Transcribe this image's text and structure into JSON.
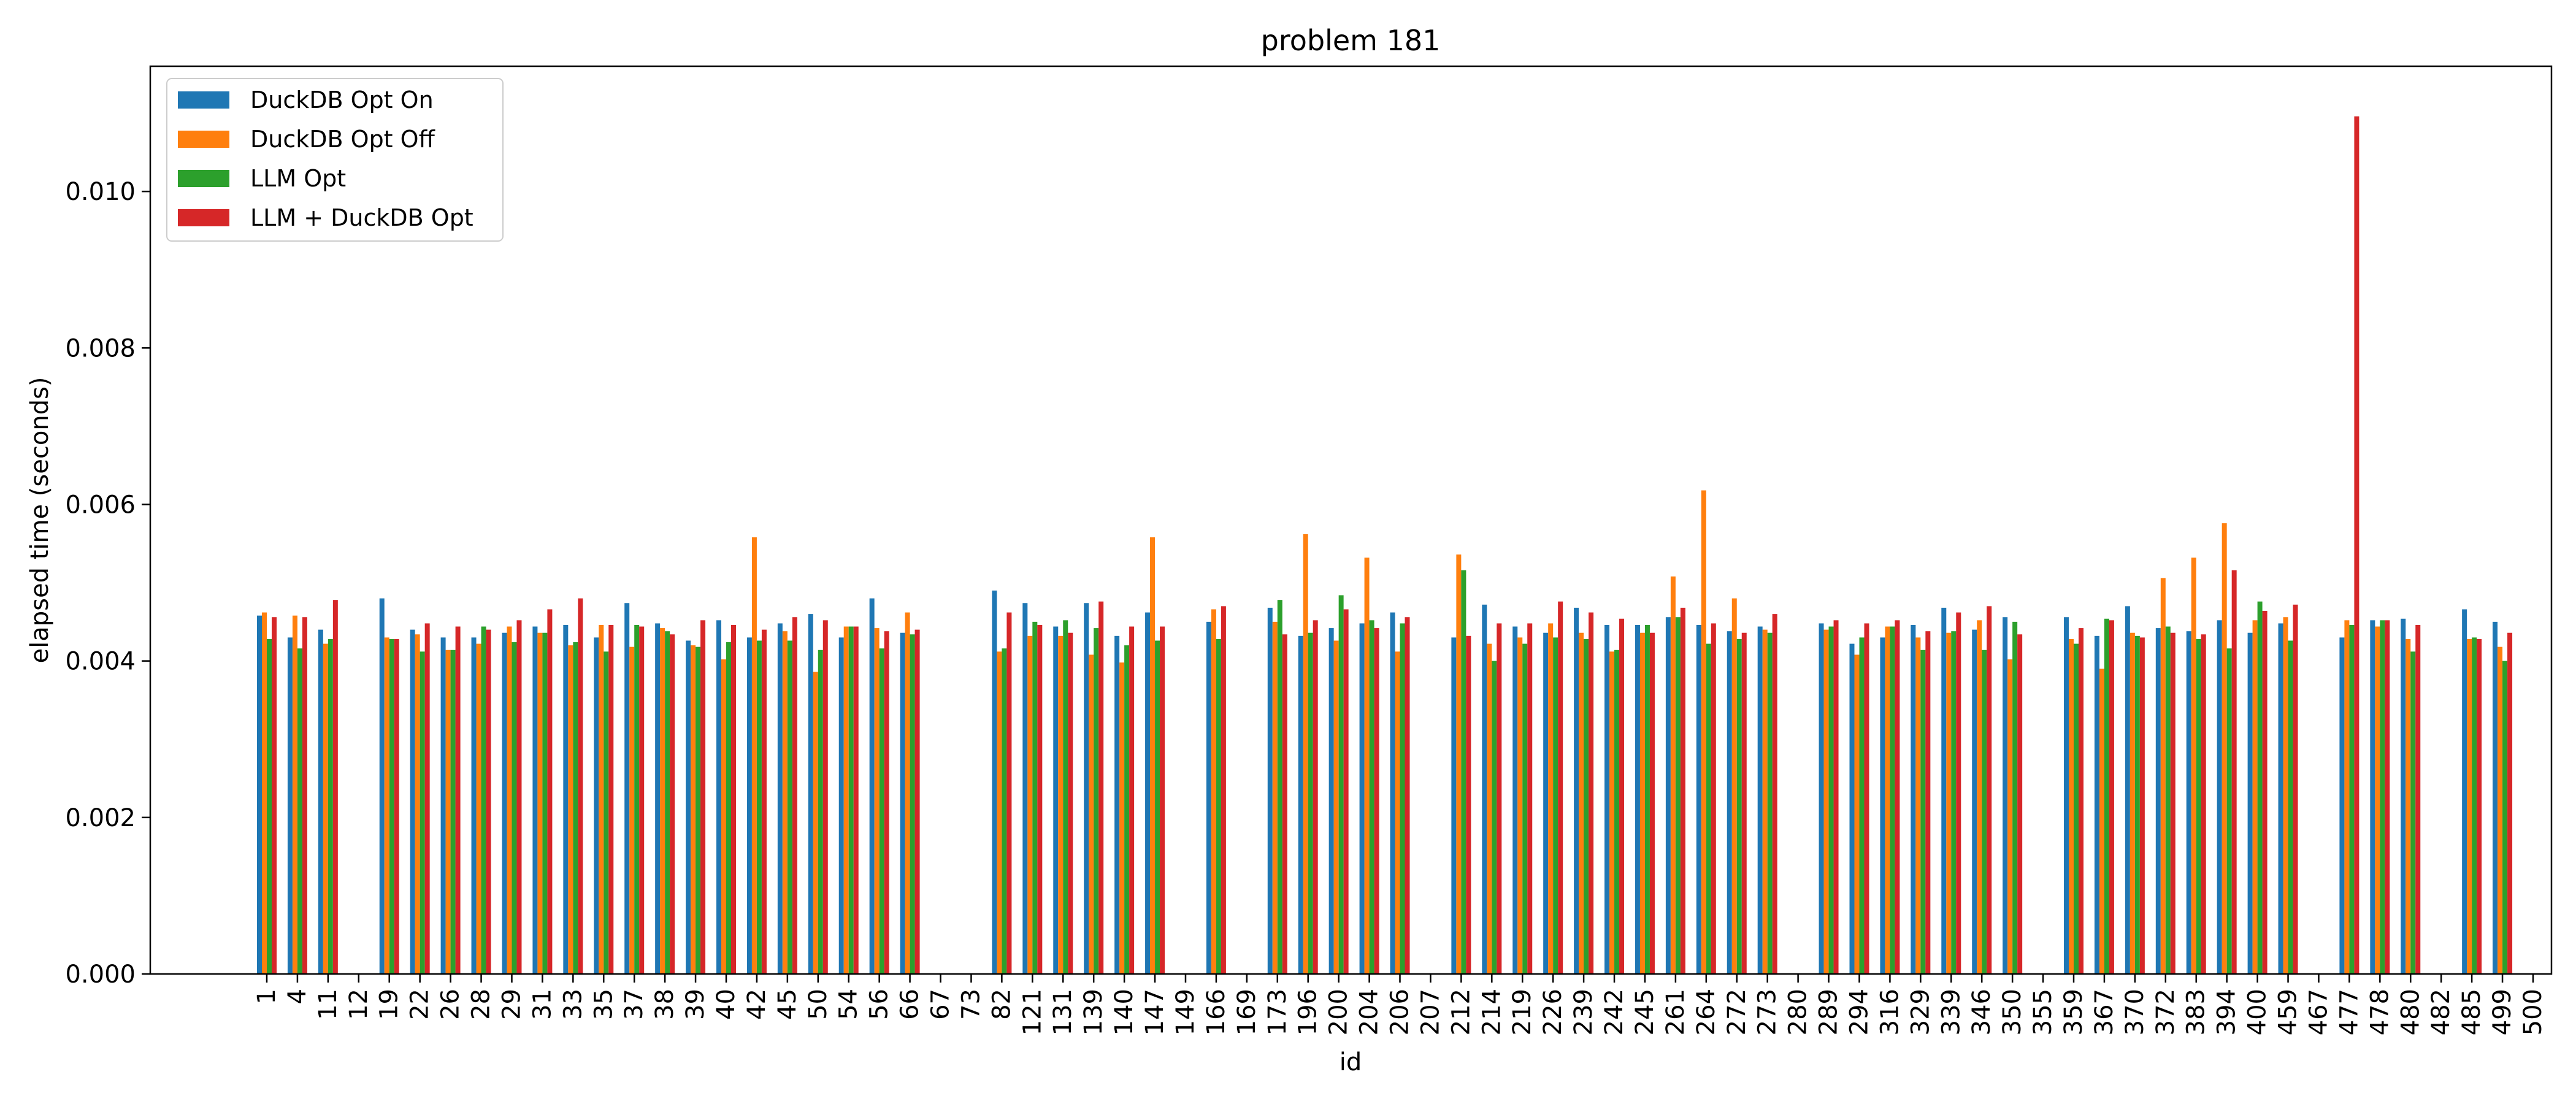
{
  "chart_data": {
    "type": "bar",
    "title": "problem 181",
    "xlabel": "id",
    "ylabel": "elapsed time (seconds)",
    "ylim": [
      0,
      0.0116
    ],
    "yticks": [
      "0.000",
      "0.002",
      "0.004",
      "0.006",
      "0.008",
      "0.010"
    ],
    "grid": false,
    "legend_position": "top-left",
    "categories": [
      "1",
      "4",
      "11",
      "12",
      "19",
      "22",
      "26",
      "28",
      "29",
      "31",
      "33",
      "35",
      "37",
      "38",
      "39",
      "40",
      "42",
      "45",
      "50",
      "54",
      "56",
      "66",
      "67",
      "73",
      "82",
      "121",
      "131",
      "139",
      "140",
      "147",
      "149",
      "166",
      "169",
      "173",
      "196",
      "200",
      "204",
      "206",
      "207",
      "212",
      "214",
      "219",
      "226",
      "239",
      "242",
      "245",
      "261",
      "264",
      "272",
      "273",
      "280",
      "289",
      "294",
      "316",
      "329",
      "339",
      "346",
      "350",
      "355",
      "359",
      "367",
      "370",
      "372",
      "383",
      "394",
      "400",
      "459",
      "467",
      "477",
      "478",
      "480",
      "482",
      "485",
      "499",
      "500"
    ],
    "series": [
      {
        "name": "DuckDB Opt On",
        "color": "#1f77b4",
        "values": [
          0.00458,
          0.0043,
          0.0044,
          0,
          0.0048,
          0.0044,
          0.0043,
          0.0043,
          0.00436,
          0.00444,
          0.00446,
          0.0043,
          0.00474,
          0.00448,
          0.00426,
          0.00452,
          0.0043,
          0.00448,
          0.0046,
          0.0043,
          0.0048,
          0.00436,
          0,
          0,
          0.0049,
          0.00474,
          0.00444,
          0.00474,
          0.00432,
          0.00462,
          0,
          0.0045,
          0,
          0.00468,
          0.00432,
          0.00442,
          0.00448,
          0.00462,
          0,
          0.0043,
          0.00472,
          0.00444,
          0.00436,
          0.00468,
          0.00446,
          0.00446,
          0.00456,
          0.00446,
          0.00438,
          0.00444,
          0,
          0.00448,
          0.00422,
          0.0043,
          0.00446,
          0.00468,
          0.0044,
          0.00456,
          0,
          0.00456,
          0.00432,
          0.0047,
          0.00442,
          0.00438,
          0.00452,
          0.00436,
          0.00448,
          0,
          0.0043,
          0.00452,
          0.00454,
          0,
          0.00466,
          0.0045,
          0
        ]
      },
      {
        "name": "DuckDB Opt Off",
        "color": "#ff7f0e",
        "values": [
          0.00462,
          0.00458,
          0.00422,
          0,
          0.0043,
          0.00434,
          0.00414,
          0.00422,
          0.00444,
          0.00436,
          0.0042,
          0.00446,
          0.00418,
          0.00442,
          0.0042,
          0.00402,
          0.00558,
          0.00438,
          0.00386,
          0.00444,
          0.00442,
          0.00462,
          0,
          0,
          0.00412,
          0.00432,
          0.00432,
          0.00408,
          0.00398,
          0.00558,
          0,
          0.00466,
          0,
          0.0045,
          0.00562,
          0.00426,
          0.00532,
          0.00412,
          0,
          0.00536,
          0.00422,
          0.0043,
          0.00448,
          0.00436,
          0.00412,
          0.00436,
          0.00508,
          0.00618,
          0.0048,
          0.0044,
          0,
          0.0044,
          0.00408,
          0.00444,
          0.0043,
          0.00436,
          0.00452,
          0.00402,
          0,
          0.00428,
          0.0039,
          0.00436,
          0.00506,
          0.00532,
          0.00576,
          0.00452,
          0.00456,
          0,
          0.00452,
          0.00444,
          0.00428,
          0,
          0.00428,
          0.00418,
          0
        ]
      },
      {
        "name": "LLM Opt",
        "color": "#2ca02c",
        "values": [
          0.00428,
          0.00416,
          0.00428,
          0,
          0.00428,
          0.00412,
          0.00414,
          0.00444,
          0.00424,
          0.00436,
          0.00424,
          0.00412,
          0.00446,
          0.00438,
          0.00418,
          0.00424,
          0.00426,
          0.00426,
          0.00414,
          0.00444,
          0.00416,
          0.00434,
          0,
          0,
          0.00416,
          0.0045,
          0.00452,
          0.00442,
          0.0042,
          0.00426,
          0,
          0.00428,
          0,
          0.00478,
          0.00436,
          0.00484,
          0.00452,
          0.00448,
          0,
          0.00516,
          0.004,
          0.00422,
          0.0043,
          0.00428,
          0.00414,
          0.00446,
          0.00456,
          0.00422,
          0.00428,
          0.00436,
          0,
          0.00444,
          0.0043,
          0.00444,
          0.00414,
          0.00438,
          0.00414,
          0.0045,
          0,
          0.00422,
          0.00454,
          0.00432,
          0.00444,
          0.00428,
          0.00416,
          0.00476,
          0.00426,
          0,
          0.00446,
          0.00452,
          0.00412,
          0,
          0.0043,
          0.004,
          0
        ]
      },
      {
        "name": "LLM + DuckDB Opt",
        "color": "#d62728",
        "values": [
          0.00456,
          0.00456,
          0.00478,
          0,
          0.00428,
          0.00448,
          0.00444,
          0.0044,
          0.00452,
          0.00466,
          0.0048,
          0.00446,
          0.00444,
          0.00434,
          0.00452,
          0.00446,
          0.0044,
          0.00456,
          0.00452,
          0.00444,
          0.00438,
          0.0044,
          0,
          0,
          0.00462,
          0.00446,
          0.00436,
          0.00476,
          0.00444,
          0.00444,
          0,
          0.0047,
          0,
          0.00434,
          0.00452,
          0.00466,
          0.00442,
          0.00456,
          0,
          0.00432,
          0.00448,
          0.00448,
          0.00476,
          0.00462,
          0.00454,
          0.00436,
          0.00468,
          0.00448,
          0.00436,
          0.0046,
          0,
          0.00452,
          0.00448,
          0.00452,
          0.00438,
          0.00462,
          0.0047,
          0.00434,
          0,
          0.00442,
          0.00452,
          0.0043,
          0.00436,
          0.00434,
          0.00516,
          0.00464,
          0.00472,
          0,
          0.01096,
          0.00452,
          0.00446,
          0,
          0.00428,
          0.00436,
          0
        ]
      }
    ]
  }
}
